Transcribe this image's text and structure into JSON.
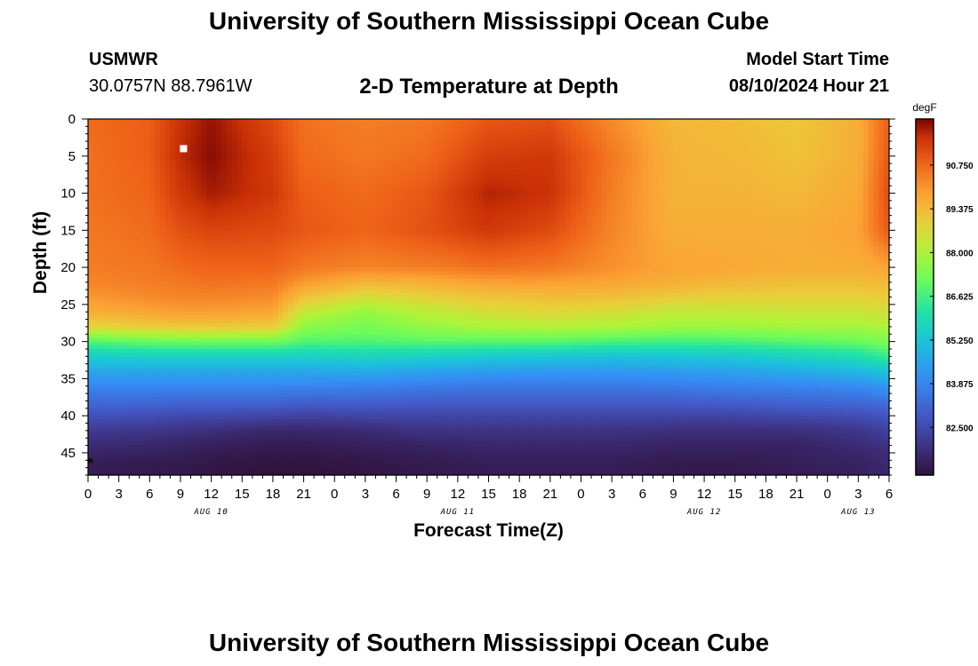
{
  "header": {
    "title": "University of Southern Mississippi Ocean Cube",
    "station": "USMWR",
    "coords": "30.0757N  88.7961W",
    "subtitle": "2-D Temperature at Depth",
    "model_label": "Model Start Time",
    "model_time": "08/10/2024 Hour 21"
  },
  "footer": {
    "title": "University of Southern Mississippi Ocean Cube"
  },
  "colors": {
    "marker": "#ffffff",
    "axis": "#000000"
  },
  "chart_data": {
    "type": "heatmap",
    "title": "2-D Temperature at Depth",
    "xlabel": "Forecast Time(Z)",
    "ylabel": "Depth (ft)",
    "colorbar_label": "degF",
    "x_range_hours": [
      0,
      78
    ],
    "x_tick_labels": [
      "0",
      "3",
      "6",
      "9",
      "12",
      "15",
      "18",
      "21",
      "0",
      "3",
      "6",
      "9",
      "12",
      "15",
      "18",
      "21",
      "0",
      "3",
      "6",
      "9",
      "12",
      "15",
      "18",
      "21",
      "0",
      "3",
      "6"
    ],
    "date_labels": [
      {
        "label": "AUG 10",
        "hour": 12
      },
      {
        "label": "AUG 11",
        "hour": 36
      },
      {
        "label": "AUG 12",
        "hour": 60
      },
      {
        "label": "AUG 13",
        "hour": 75
      }
    ],
    "ylim": [
      0,
      48
    ],
    "y_ticks": [
      0,
      5,
      10,
      15,
      20,
      25,
      30,
      35,
      40,
      45
    ],
    "colorbar_range": [
      81.0,
      92.2
    ],
    "colorbar_ticks": [
      82.5,
      83.875,
      85.25,
      86.625,
      88.0,
      89.375,
      90.75
    ],
    "colorbar_tick_labels": [
      "82.500",
      "83.875",
      "85.250",
      "86.625",
      "88.000",
      "89.375",
      "90.750"
    ],
    "surface_markers": [
      {
        "hour": 9.3,
        "depth": 4
      }
    ],
    "bottom_markers": [
      {
        "hour": 0.2,
        "depth": 46
      }
    ],
    "grid_hours": [
      0,
      6,
      9,
      12,
      18,
      21,
      27,
      33,
      39,
      45,
      51,
      57,
      63,
      69,
      75,
      78
    ],
    "grid_depths": [
      0,
      5,
      10,
      15,
      20,
      22,
      24,
      26,
      28,
      30,
      32,
      34,
      36,
      38,
      40,
      42,
      44,
      46,
      48
    ],
    "temperature_grid": [
      [
        90.7,
        90.9,
        91.6,
        92.0,
        91.2,
        90.6,
        90.4,
        90.5,
        91.0,
        91.1,
        90.2,
        89.4,
        89.3,
        89.1,
        89.6,
        90.9
      ],
      [
        90.6,
        90.9,
        91.7,
        92.1,
        91.4,
        90.7,
        90.5,
        90.7,
        91.4,
        91.5,
        90.5,
        89.5,
        89.4,
        89.2,
        89.6,
        91.0
      ],
      [
        90.6,
        90.8,
        91.5,
        91.9,
        91.5,
        90.9,
        90.7,
        91.0,
        91.8,
        91.6,
        90.4,
        89.5,
        89.5,
        89.4,
        89.7,
        91.2
      ],
      [
        90.5,
        90.7,
        91.1,
        91.3,
        91.2,
        91.0,
        90.8,
        91.1,
        91.5,
        91.2,
        90.3,
        89.6,
        89.6,
        89.6,
        89.8,
        91.0
      ],
      [
        90.4,
        90.5,
        90.7,
        90.8,
        90.8,
        90.5,
        90.3,
        90.4,
        90.6,
        90.5,
        90.1,
        89.8,
        89.7,
        89.6,
        89.6,
        89.8
      ],
      [
        90.3,
        90.4,
        90.5,
        90.6,
        90.5,
        90.0,
        89.5,
        89.6,
        89.9,
        89.9,
        89.8,
        89.6,
        89.4,
        89.3,
        89.3,
        89.4
      ],
      [
        90.0,
        90.2,
        90.3,
        90.3,
        90.2,
        89.2,
        88.6,
        88.9,
        89.2,
        89.3,
        89.3,
        89.0,
        88.9,
        88.9,
        88.9,
        89.0
      ],
      [
        89.6,
        89.8,
        89.9,
        89.9,
        89.8,
        88.3,
        87.7,
        88.2,
        88.6,
        88.8,
        88.6,
        88.3,
        88.3,
        88.4,
        88.4,
        88.6
      ],
      [
        88.8,
        89.0,
        89.1,
        89.1,
        89.0,
        87.6,
        87.3,
        87.7,
        88.0,
        88.1,
        88.0,
        87.8,
        87.8,
        87.9,
        87.9,
        88.0
      ],
      [
        86.8,
        87.1,
        87.2,
        87.2,
        87.2,
        86.8,
        86.8,
        86.9,
        86.9,
        86.9,
        86.7,
        86.6,
        86.7,
        86.9,
        87.1,
        87.4
      ],
      [
        85.5,
        85.6,
        85.6,
        85.6,
        85.6,
        85.6,
        85.7,
        85.6,
        85.4,
        85.3,
        85.2,
        85.3,
        85.4,
        85.7,
        86.0,
        86.5
      ],
      [
        84.6,
        84.6,
        84.6,
        84.6,
        84.6,
        84.6,
        84.7,
        84.5,
        84.4,
        84.3,
        84.3,
        84.4,
        84.5,
        84.7,
        85.0,
        85.3
      ],
      [
        83.9,
        83.9,
        83.9,
        83.9,
        83.9,
        83.9,
        83.8,
        83.7,
        83.6,
        83.6,
        83.6,
        83.7,
        83.8,
        83.9,
        84.0,
        84.3
      ],
      [
        83.3,
        83.3,
        83.2,
        83.2,
        83.2,
        83.1,
        83.1,
        83.0,
        83.0,
        83.0,
        83.0,
        83.0,
        83.1,
        83.2,
        83.3,
        83.5
      ],
      [
        82.7,
        82.6,
        82.5,
        82.5,
        82.4,
        82.3,
        82.4,
        82.4,
        82.4,
        82.4,
        82.4,
        82.4,
        82.4,
        82.5,
        82.6,
        82.8
      ],
      [
        82.1,
        82.0,
        81.9,
        81.8,
        81.6,
        81.6,
        81.7,
        81.9,
        81.9,
        81.9,
        81.9,
        81.8,
        81.8,
        81.8,
        82.0,
        82.3
      ],
      [
        81.7,
        81.6,
        81.5,
        81.4,
        81.3,
        81.3,
        81.4,
        81.5,
        81.6,
        81.6,
        81.6,
        81.5,
        81.5,
        81.5,
        81.7,
        81.9
      ],
      [
        81.4,
        81.3,
        81.3,
        81.2,
        81.1,
        81.1,
        81.2,
        81.3,
        81.4,
        81.4,
        81.4,
        81.3,
        81.3,
        81.4,
        81.5,
        81.7
      ],
      [
        81.3,
        81.2,
        81.2,
        81.1,
        81.0,
        81.0,
        81.1,
        81.2,
        81.3,
        81.3,
        81.3,
        81.2,
        81.2,
        81.3,
        81.4,
        81.6
      ]
    ]
  }
}
